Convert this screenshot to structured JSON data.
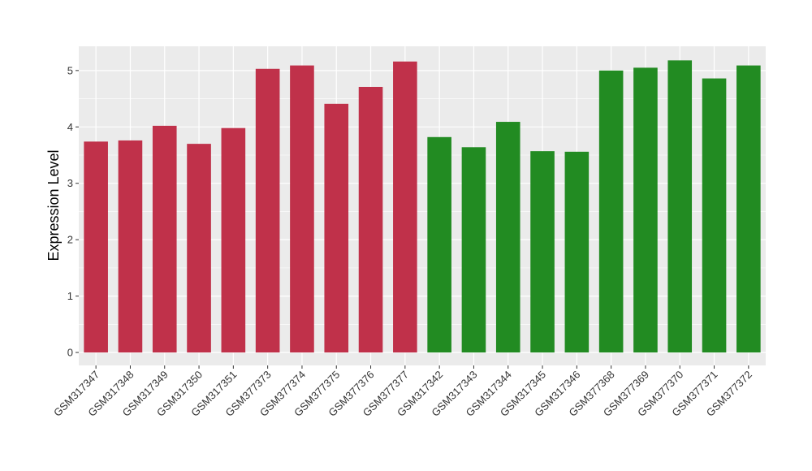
{
  "chart_data": {
    "type": "bar",
    "title": "",
    "xlabel": "",
    "ylabel": "Expression Level",
    "ylim": [
      -0.23,
      5.43
    ],
    "yticks": [
      0,
      1,
      2,
      3,
      4,
      5
    ],
    "grid": true,
    "legend": "none",
    "colors": {
      "group_a": "#C0314A",
      "group_b": "#228B22",
      "panel": "#EBEBEB",
      "grid": "#FFFFFF"
    },
    "categories": [
      "GSM317347",
      "GSM317348",
      "GSM317349",
      "GSM317350",
      "GSM317351",
      "GSM377373",
      "GSM377374",
      "GSM377375",
      "GSM377376",
      "GSM377377",
      "GSM317342",
      "GSM317343",
      "GSM317344",
      "GSM317345",
      "GSM317346",
      "GSM377368",
      "GSM377369",
      "GSM377370",
      "GSM377371",
      "GSM377372"
    ],
    "values": [
      3.74,
      3.76,
      4.02,
      3.7,
      3.98,
      5.03,
      5.09,
      4.41,
      4.71,
      5.16,
      3.82,
      3.64,
      4.09,
      3.57,
      3.56,
      5.0,
      5.05,
      5.18,
      4.86,
      5.09
    ],
    "groups": [
      "a",
      "a",
      "a",
      "a",
      "a",
      "a",
      "a",
      "a",
      "a",
      "a",
      "b",
      "b",
      "b",
      "b",
      "b",
      "b",
      "b",
      "b",
      "b",
      "b"
    ]
  }
}
